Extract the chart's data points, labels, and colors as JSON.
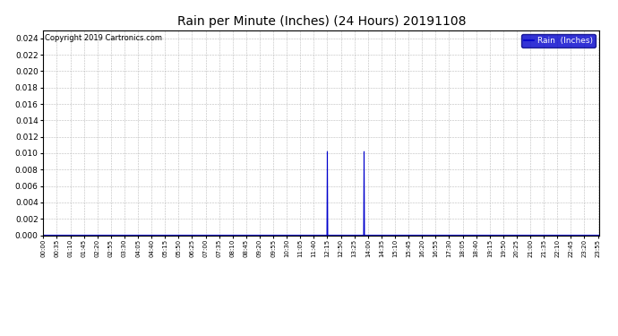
{
  "title": "Rain per Minute (Inches) (24 Hours) 20191108",
  "copyright_text": "Copyright 2019 Cartronics.com",
  "legend_label": "Rain  (Inches)",
  "legend_bg": "#0000cc",
  "legend_text_color": "#ffffff",
  "line_color": "#0000cc",
  "grid_color": "#bbbbbb",
  "bg_color": "#ffffff",
  "plot_bg_color": "#ffffff",
  "ylim": [
    0,
    0.025
  ],
  "yticks": [
    0.0,
    0.002,
    0.004,
    0.006,
    0.008,
    0.01,
    0.012,
    0.014,
    0.016,
    0.018,
    0.02,
    0.022,
    0.024
  ],
  "spike1_minute": 735,
  "spike1_value": 0.0102,
  "spike2_minute": 830,
  "spike2_value": 0.0102,
  "total_minutes": 1440,
  "xlabel_interval": 35,
  "title_fontsize": 10,
  "copyright_fontsize": 6,
  "ytick_fontsize": 6.5,
  "xtick_fontsize": 5
}
